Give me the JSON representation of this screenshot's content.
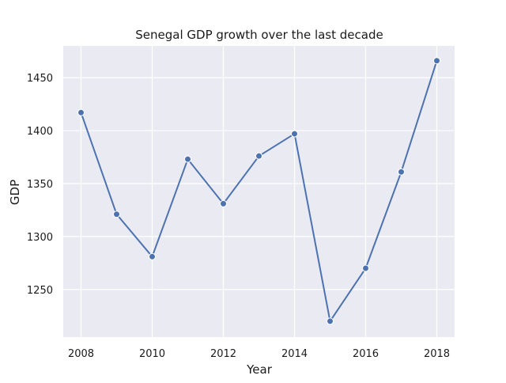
{
  "chart_data": {
    "type": "line",
    "title": "Senegal GDP growth over the last decade",
    "xlabel": "Year",
    "ylabel": "GDP",
    "x": [
      2008,
      2009,
      2010,
      2011,
      2012,
      2013,
      2014,
      2015,
      2016,
      2017,
      2018
    ],
    "series": [
      {
        "values": [
          1417,
          1321,
          1281,
          1373,
          1331,
          1376,
          1397,
          1220,
          1270,
          1361,
          1466
        ]
      }
    ],
    "xlim": [
      2007.5,
      2018.5
    ],
    "ylim": [
      1205,
      1480
    ],
    "xticks": [
      2008,
      2010,
      2012,
      2014,
      2016,
      2018
    ],
    "yticks": [
      1250,
      1300,
      1350,
      1400,
      1450
    ],
    "grid": true,
    "colors": {
      "line": "#4c72b0",
      "background": "#eaeaf2",
      "grid": "#ffffff"
    }
  }
}
